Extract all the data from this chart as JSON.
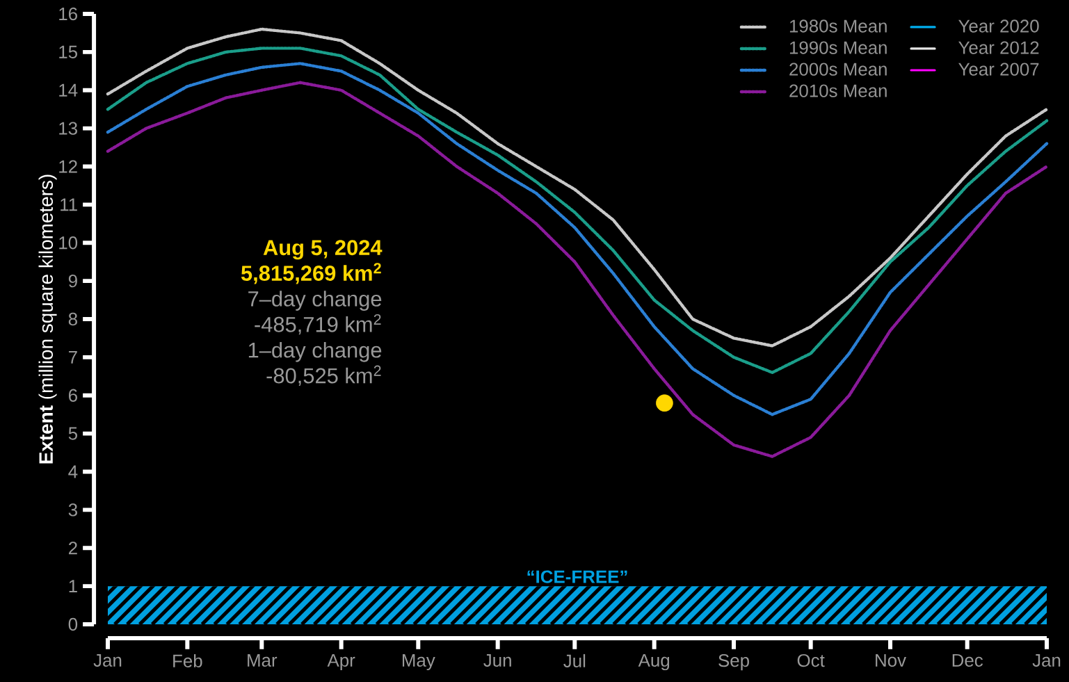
{
  "chart_data": {
    "type": "line",
    "ylabel": "**Extent** (million square kilometers)",
    "x": [
      "2024-01-01",
      "2024-01-16",
      "2024-02-01",
      "2024-02-16",
      "2024-03-01",
      "2024-03-16",
      "2024-04-01",
      "2024-04-16",
      "2024-05-01",
      "2024-05-16",
      "2024-06-01",
      "2024-06-16",
      "2024-07-01",
      "2024-07-16",
      "2024-08-01",
      "2024-08-16",
      "2024-09-01",
      "2024-09-16",
      "2024-10-01",
      "2024-10-16",
      "2024-11-01",
      "2024-11-16",
      "2024-12-01",
      "2024-12-16",
      "2025-01-01"
    ],
    "series": [
      {
        "name": "1980s Mean",
        "color": "#c8c8c8",
        "line_style": "dotted",
        "values": [
          13.9,
          14.5,
          15.1,
          15.4,
          15.6,
          15.5,
          15.3,
          14.7,
          14.0,
          13.4,
          12.6,
          12.0,
          11.4,
          10.6,
          9.3,
          8.0,
          7.5,
          7.3,
          7.8,
          8.6,
          9.6,
          10.7,
          11.8,
          12.8,
          13.5
        ]
      },
      {
        "name": "1990s Mean",
        "color": "#1a9e8a",
        "line_style": "dotted",
        "values": [
          13.5,
          14.2,
          14.7,
          15.0,
          15.1,
          15.1,
          14.9,
          14.4,
          13.5,
          12.9,
          12.3,
          11.6,
          10.8,
          9.8,
          8.5,
          7.7,
          7.0,
          6.6,
          7.1,
          8.2,
          9.5,
          10.4,
          11.5,
          12.4,
          13.2
        ]
      },
      {
        "name": "2000s Mean",
        "color": "#2a7fd4",
        "line_style": "dotted",
        "values": [
          12.9,
          13.5,
          14.1,
          14.4,
          14.6,
          14.7,
          14.5,
          14.0,
          13.4,
          12.6,
          11.9,
          11.3,
          10.4,
          9.2,
          7.8,
          6.7,
          6.0,
          5.5,
          5.9,
          7.1,
          8.7,
          9.7,
          10.7,
          11.6,
          12.6
        ]
      },
      {
        "name": "2010s Mean",
        "color": "#8a1a9a",
        "line_style": "dotted",
        "values": [
          12.4,
          13.0,
          13.4,
          13.8,
          14.0,
          14.2,
          14.0,
          13.4,
          12.8,
          12.0,
          11.3,
          10.5,
          9.5,
          8.1,
          6.7,
          5.5,
          4.7,
          4.4,
          4.9,
          6.0,
          7.7,
          8.9,
          10.1,
          11.3,
          12.0
        ]
      },
      {
        "name": "Year 2020",
        "color": "#00aeef",
        "line_style": "solid",
        "values": [
          null,
          null,
          null,
          null,
          null,
          null,
          null,
          null,
          null,
          null,
          null,
          null,
          null,
          null,
          null,
          null,
          null,
          null,
          null,
          null,
          null,
          null,
          null,
          null,
          null
        ]
      },
      {
        "name": "Year 2012",
        "color": "#e6e6e6",
        "line_style": "solid",
        "values": [
          null,
          null,
          null,
          null,
          null,
          null,
          null,
          null,
          null,
          null,
          null,
          null,
          null,
          null,
          null,
          null,
          null,
          null,
          null,
          null,
          null,
          null,
          null,
          null,
          null
        ]
      },
      {
        "name": "Year 2007",
        "color": "#ff00ff",
        "line_style": "solid",
        "values": [
          null,
          null,
          null,
          null,
          null,
          null,
          null,
          null,
          null,
          null,
          null,
          null,
          null,
          null,
          null,
          null,
          null,
          null,
          null,
          null,
          null,
          null,
          null,
          null,
          null
        ]
      },
      {
        "type": "scatter",
        "color": "#ffd700",
        "x": [
          "2024-08-05"
        ],
        "values": [
          5.8
        ]
      }
    ],
    "xlim": [
      "2024-01-01",
      "2025-01-01"
    ],
    "xticks": [
      {
        "value": "2024-01-01",
        "label": "Jan"
      },
      {
        "value": "2024-02-01",
        "label": "Feb"
      },
      {
        "value": "2024-03-01",
        "label": "Mar"
      },
      {
        "value": "2024-04-01",
        "label": "Apr"
      },
      {
        "value": "2024-05-01",
        "label": "May"
      },
      {
        "value": "2024-06-01",
        "label": "Jun"
      },
      {
        "value": "2024-07-01",
        "label": "Jul"
      },
      {
        "value": "2024-08-01",
        "label": "Aug"
      },
      {
        "value": "2024-09-01",
        "label": "Sep"
      },
      {
        "value": "2024-10-01",
        "label": "Oct"
      },
      {
        "value": "2024-11-01",
        "label": "Nov"
      },
      {
        "value": "2024-12-01",
        "label": "Dec"
      },
      {
        "value": "2025-01-01",
        "label": "Jan"
      }
    ],
    "ylim": [
      0,
      16
    ],
    "yticks": [
      0,
      1,
      2,
      3,
      4,
      5,
      6,
      7,
      8,
      9,
      10,
      11,
      12,
      13,
      14,
      15,
      16
    ],
    "bands": [
      {
        "axis": "y",
        "from": 0,
        "to": 1,
        "label": "“ICE-FREE”",
        "color": "#00a0e0"
      }
    ],
    "annotations": [
      "Aug 5, 2024",
      "5,815,269 km$^{2}$",
      "7–day change",
      "-485,719 km$^{2}$",
      "1–day change",
      "-80,525 km$^{2}$"
    ],
    "legend": "top right",
    "grid": false,
    "marker": "none"
  }
}
